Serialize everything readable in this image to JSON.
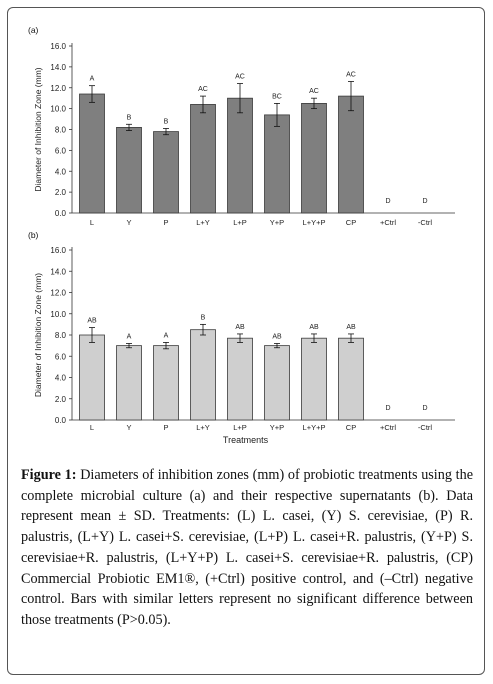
{
  "chart_data": [
    {
      "panel_label": "(a)",
      "type": "bar",
      "ylabel": "Diameter of Inhibition Zone (mm)",
      "xlabel": "",
      "ylim": [
        0,
        16
      ],
      "yticks": [
        "0.0",
        "2.0",
        "4.0",
        "6.0",
        "8.0",
        "10.0",
        "12.0",
        "14.0",
        "16.0"
      ],
      "categories": [
        "L",
        "Y",
        "P",
        "L+Y",
        "L+P",
        "Y+P",
        "L+Y+P",
        "CP",
        "+Ctrl",
        "-Ctrl"
      ],
      "values": [
        11.4,
        8.2,
        7.8,
        10.4,
        11.0,
        9.4,
        10.5,
        11.2,
        0,
        0
      ],
      "errors": [
        0.8,
        0.3,
        0.3,
        0.8,
        1.4,
        1.1,
        0.5,
        1.4,
        0,
        0
      ],
      "letters": [
        "A",
        "B",
        "B",
        "AC",
        "AC",
        "BC",
        "AC",
        "AC",
        "D",
        "D"
      ],
      "bar_color": "#7f7f7f",
      "grid": false
    },
    {
      "panel_label": "(b)",
      "type": "bar",
      "ylabel": "Diameter of Inhibition Zone (mm)",
      "xlabel": "Treatments",
      "ylim": [
        0,
        16
      ],
      "yticks": [
        "0.0",
        "2.0",
        "4.0",
        "6.0",
        "8.0",
        "10.0",
        "12.0",
        "14.0",
        "16.0"
      ],
      "categories": [
        "L",
        "Y",
        "P",
        "L+Y",
        "L+P",
        "Y+P",
        "L+Y+P",
        "CP",
        "+Ctrl",
        "-Ctrl"
      ],
      "values": [
        8.0,
        7.0,
        7.0,
        8.5,
        7.7,
        7.0,
        7.7,
        7.7,
        0,
        0
      ],
      "errors": [
        0.7,
        0.2,
        0.3,
        0.5,
        0.4,
        0.2,
        0.4,
        0.4,
        0,
        0
      ],
      "letters": [
        "AB",
        "A",
        "A",
        "B",
        "AB",
        "AB",
        "AB",
        "AB",
        "D",
        "D"
      ],
      "bar_color": "#cfcfcf",
      "grid": false
    }
  ],
  "caption": {
    "label": "Figure 1:",
    "text": "Diameters of inhibition zones (mm) of probiotic treatments using the complete microbial culture (a) and their respective supernatants (b). Data represent mean ± SD. Treatments: (L) L. casei, (Y) S. cerevisiae, (P) R. palustris, (L+Y) L. casei+S. cerevisiae, (L+P) L. casei+R. palustris, (Y+P) S. cerevisiae+R. palustris, (L+Y+P) L. casei+S. cerevisiae+R. palustris, (CP) Commercial Probiotic EM1®, (+Ctrl) positive control, and (–Ctrl) negative control. Bars with similar letters represent no significant difference between those treatments (P>0.05)."
  }
}
